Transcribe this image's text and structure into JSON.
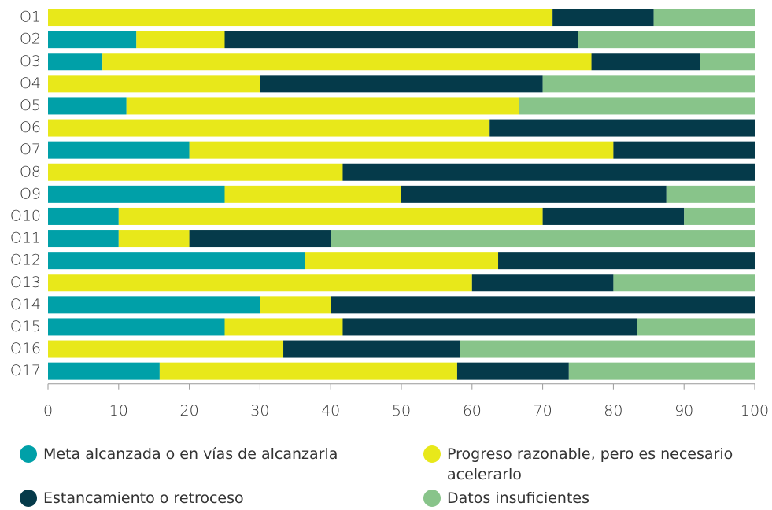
{
  "chart_data": {
    "type": "stacked-bar-horizontal",
    "categories": [
      "O1",
      "O2",
      "O3",
      "O4",
      "O5",
      "O6",
      "O7",
      "O8",
      "O9",
      "O10",
      "O11",
      "O12",
      "O13",
      "O14",
      "O15",
      "O16",
      "O17"
    ],
    "series": [
      {
        "name": "Meta alcanzada o en vías de alcanzarla",
        "color": "#00a0a8",
        "values": [
          0,
          12.5,
          7.7,
          0,
          11.1,
          0,
          20,
          0,
          25,
          10,
          10,
          36.4,
          0,
          30,
          25,
          0,
          15.8
        ]
      },
      {
        "name": "Progreso razonable, pero es necesario acelerarlo",
        "color": "#e8e81a",
        "values": [
          71.4,
          12.5,
          69.2,
          30,
          55.6,
          62.5,
          60,
          41.7,
          25,
          60,
          10,
          27.3,
          60,
          10,
          16.7,
          33.3,
          42.1
        ]
      },
      {
        "name": "Estancamiento o retroceso",
        "color": "#053a4a",
        "values": [
          14.3,
          50,
          15.4,
          40,
          0,
          37.5,
          20,
          58.3,
          37.5,
          20,
          20,
          36.4,
          20,
          60,
          41.7,
          25,
          15.8
        ]
      },
      {
        "name": "Datos insuficientes",
        "color": "#88c48a",
        "values": [
          14.3,
          25,
          7.7,
          30,
          33.3,
          0,
          0,
          0,
          12.5,
          10,
          60,
          0,
          20,
          0,
          16.7,
          41.7,
          26.3
        ]
      }
    ],
    "xlim": [
      0,
      100
    ],
    "xticks": [
      0,
      10,
      20,
      30,
      40,
      50,
      60,
      70,
      80,
      90,
      100
    ]
  }
}
